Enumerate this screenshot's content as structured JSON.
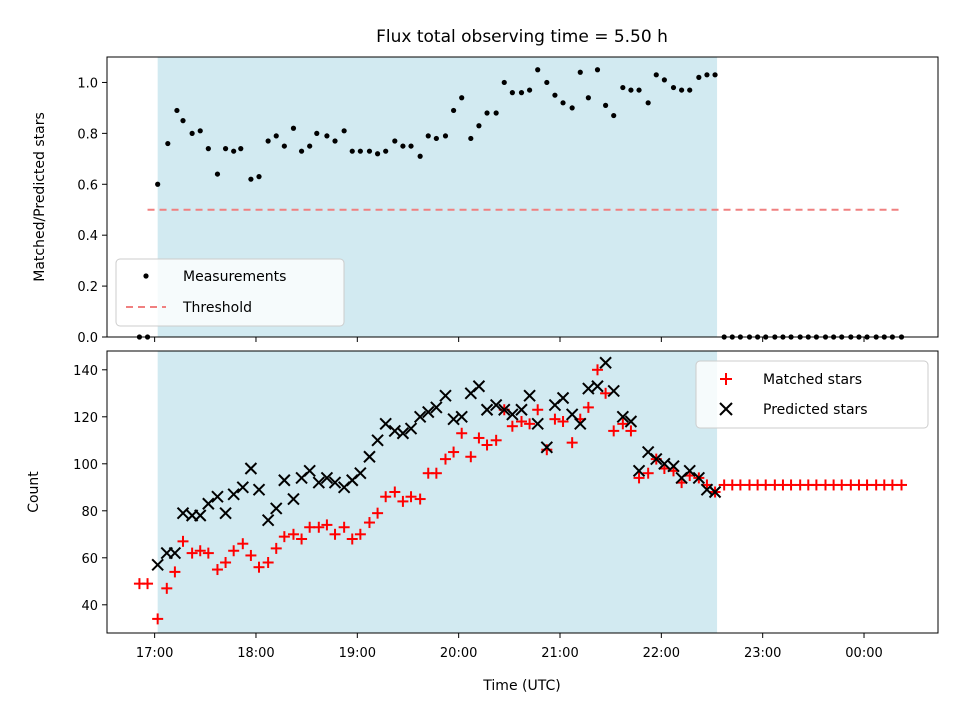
{
  "chart_data": [
    {
      "type": "scatter",
      "title": "Flux total observing time = 5.50 h",
      "xlabel": "",
      "ylabel": "Matched/Predicted stars",
      "xlim": [
        16.53,
        24.73
      ],
      "ylim": [
        0,
        1.1
      ],
      "yticks": [
        0.0,
        0.2,
        0.4,
        0.6,
        0.8,
        1.0
      ],
      "ytick_labels": [
        "0.0",
        "0.2",
        "0.4",
        "0.6",
        "0.8",
        "1.0"
      ],
      "shaded_span": [
        17.03,
        22.55
      ],
      "shaded_color": "#add8e6",
      "legend_position": "lower-left",
      "series": [
        {
          "name": "Measurements",
          "marker": "dot",
          "color": "#000000",
          "x": [
            16.85,
            16.93,
            17.03,
            17.13,
            17.22,
            17.28,
            17.37,
            17.45,
            17.53,
            17.62,
            17.7,
            17.78,
            17.85,
            17.95,
            18.03,
            18.12,
            18.2,
            18.28,
            18.37,
            18.45,
            18.53,
            18.6,
            18.7,
            18.78,
            18.87,
            18.95,
            19.03,
            19.12,
            19.2,
            19.28,
            19.37,
            19.45,
            19.53,
            19.62,
            19.7,
            19.78,
            19.87,
            19.95,
            20.03,
            20.12,
            20.2,
            20.28,
            20.37,
            20.45,
            20.53,
            20.62,
            20.7,
            20.78,
            20.87,
            20.95,
            21.03,
            21.12,
            21.2,
            21.28,
            21.37,
            21.45,
            21.53,
            21.62,
            21.7,
            21.78,
            21.87,
            21.95,
            22.03,
            22.12,
            22.2,
            22.28,
            22.37,
            22.45,
            22.53,
            22.62,
            22.7,
            22.78,
            22.87,
            22.95,
            23.03,
            23.12,
            23.2,
            23.28,
            23.37,
            23.45,
            23.53,
            23.62,
            23.7,
            23.78,
            23.87,
            23.95,
            24.03,
            24.12,
            24.2,
            24.28,
            24.37
          ],
          "y": [
            0.0,
            0.0,
            0.6,
            0.76,
            0.89,
            0.85,
            0.8,
            0.81,
            0.74,
            0.64,
            0.74,
            0.73,
            0.74,
            0.62,
            0.63,
            0.77,
            0.79,
            0.75,
            0.82,
            0.73,
            0.75,
            0.8,
            0.79,
            0.77,
            0.81,
            0.73,
            0.73,
            0.73,
            0.72,
            0.73,
            0.77,
            0.75,
            0.75,
            0.71,
            0.79,
            0.78,
            0.79,
            0.89,
            0.94,
            0.78,
            0.83,
            0.88,
            0.88,
            1.0,
            0.96,
            0.96,
            0.97,
            1.05,
            1.0,
            0.95,
            0.92,
            0.9,
            1.04,
            0.94,
            1.05,
            0.91,
            0.87,
            0.98,
            0.97,
            0.97,
            0.92,
            1.03,
            1.01,
            0.98,
            0.97,
            0.97,
            1.02,
            1.03,
            1.03,
            0.0,
            0.0,
            0.0,
            0.0,
            0.0,
            0.0,
            0.0,
            0.0,
            0.0,
            0.0,
            0.0,
            0.0,
            0.0,
            0.0,
            0.0,
            0.0,
            0.0,
            0.0,
            0.0,
            0.0,
            0.0,
            0.0
          ]
        },
        {
          "name": "Threshold",
          "marker": "dashed-line",
          "color": "#f08080",
          "x": [
            16.93,
            24.37
          ],
          "y": [
            0.5,
            0.5
          ]
        }
      ]
    },
    {
      "type": "scatter",
      "title": "",
      "xlabel": "Time (UTC)",
      "ylabel": "Count",
      "xlim": [
        16.53,
        24.73
      ],
      "ylim": [
        28,
        148
      ],
      "yticks": [
        40,
        60,
        80,
        100,
        120,
        140
      ],
      "ytick_labels": [
        "40",
        "60",
        "80",
        "100",
        "120",
        "140"
      ],
      "xticks": [
        17,
        18,
        19,
        20,
        21,
        22,
        23,
        24
      ],
      "xtick_labels": [
        "17:00",
        "18:00",
        "19:00",
        "20:00",
        "21:00",
        "22:00",
        "23:00",
        "00:00"
      ],
      "shaded_span": [
        17.03,
        22.55
      ],
      "shaded_color": "#add8e6",
      "legend_position": "top-right",
      "series": [
        {
          "name": "Matched stars",
          "marker": "plus",
          "color": "#ff0000",
          "x": [
            16.85,
            16.93,
            17.03,
            17.12,
            17.2,
            17.28,
            17.37,
            17.45,
            17.53,
            17.62,
            17.7,
            17.78,
            17.87,
            17.95,
            18.03,
            18.12,
            18.2,
            18.28,
            18.37,
            18.45,
            18.53,
            18.62,
            18.7,
            18.78,
            18.87,
            18.95,
            19.03,
            19.12,
            19.2,
            19.28,
            19.37,
            19.45,
            19.53,
            19.62,
            19.7,
            19.78,
            19.87,
            19.95,
            20.03,
            20.12,
            20.2,
            20.28,
            20.37,
            20.45,
            20.53,
            20.62,
            20.7,
            20.78,
            20.87,
            20.95,
            21.03,
            21.12,
            21.2,
            21.28,
            21.37,
            21.45,
            21.53,
            21.62,
            21.7,
            21.78,
            21.87,
            21.95,
            22.03,
            22.12,
            22.2,
            22.28,
            22.37,
            22.45,
            22.53,
            22.62,
            22.7,
            22.78,
            22.87,
            22.95,
            23.03,
            23.12,
            23.2,
            23.28,
            23.37,
            23.45,
            23.53,
            23.62,
            23.7,
            23.78,
            23.87,
            23.95,
            24.03,
            24.12,
            24.2,
            24.28,
            24.37
          ],
          "y": [
            49,
            49,
            34,
            47,
            54,
            67,
            62,
            63,
            62,
            55,
            58,
            63,
            66,
            61,
            56,
            58,
            64,
            69,
            70,
            68,
            73,
            73,
            74,
            70,
            73,
            68,
            70,
            75,
            79,
            86,
            88,
            84,
            86,
            85,
            96,
            96,
            102,
            105,
            113,
            103,
            111,
            108,
            110,
            123,
            116,
            118,
            117,
            123,
            106,
            119,
            118,
            109,
            119,
            124,
            140,
            130,
            114,
            117,
            114,
            94,
            96,
            102,
            98,
            97,
            92,
            95,
            94,
            91,
            88,
            91,
            91,
            91,
            91,
            91,
            91,
            91,
            91,
            91,
            91,
            91,
            91,
            91,
            91,
            91,
            91,
            91,
            91,
            91,
            91,
            91,
            91
          ]
        },
        {
          "name": "Predicted stars",
          "marker": "x",
          "color": "#000000",
          "x": [
            17.03,
            17.12,
            17.2,
            17.28,
            17.37,
            17.45,
            17.53,
            17.62,
            17.7,
            17.78,
            17.87,
            17.95,
            18.03,
            18.12,
            18.2,
            18.28,
            18.37,
            18.45,
            18.53,
            18.62,
            18.7,
            18.78,
            18.87,
            18.95,
            19.03,
            19.12,
            19.2,
            19.28,
            19.37,
            19.45,
            19.53,
            19.62,
            19.7,
            19.78,
            19.87,
            19.95,
            20.03,
            20.12,
            20.2,
            20.28,
            20.37,
            20.45,
            20.53,
            20.62,
            20.7,
            20.78,
            20.87,
            20.95,
            21.03,
            21.12,
            21.2,
            21.28,
            21.37,
            21.45,
            21.53,
            21.62,
            21.7,
            21.78,
            21.87,
            21.95,
            22.03,
            22.12,
            22.2,
            22.28,
            22.37,
            22.45,
            22.53
          ],
          "y": [
            57,
            62,
            62,
            79,
            78,
            78,
            83,
            86,
            79,
            87,
            90,
            98,
            89,
            76,
            81,
            93,
            85,
            94,
            97,
            92,
            94,
            92,
            90,
            93,
            96,
            103,
            110,
            117,
            114,
            113,
            115,
            120,
            122,
            124,
            129,
            119,
            120,
            130,
            133,
            123,
            125,
            123,
            121,
            123,
            129,
            117,
            107,
            125,
            128,
            121,
            117,
            132,
            133,
            143,
            131,
            120,
            118,
            97,
            105,
            102,
            100,
            99,
            94,
            97,
            94,
            89,
            88
          ]
        }
      ]
    }
  ]
}
